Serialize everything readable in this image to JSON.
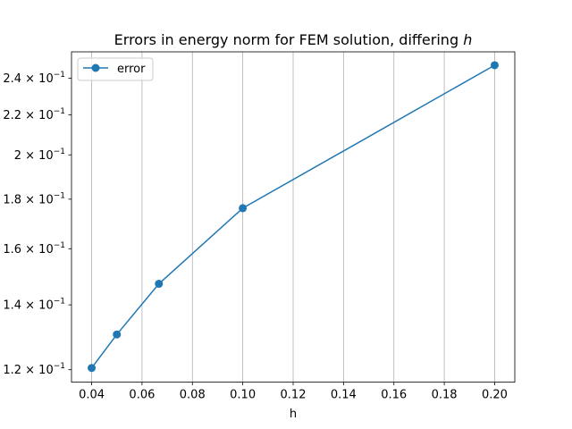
{
  "chart_data": {
    "type": "line",
    "title": "Errors in energy norm for FEM solution, differing",
    "title_var": "h",
    "xlabel": "h",
    "ylabel": "",
    "x_scale": "linear",
    "y_scale": "log",
    "xlim": [
      0.032,
      0.208
    ],
    "ylim": [
      0.1165,
      0.2555
    ],
    "x_ticks": [
      0.04,
      0.06,
      0.08,
      0.1,
      0.12,
      0.14,
      0.16,
      0.18,
      0.2
    ],
    "x_tick_labels": [
      "0.04",
      "0.06",
      "0.08",
      "0.10",
      "0.12",
      "0.14",
      "0.16",
      "0.18",
      "0.20"
    ],
    "y_ticks": [
      0.12,
      0.14,
      0.16,
      0.18,
      0.2,
      0.22,
      0.24
    ],
    "y_tick_labels": [
      {
        "mantissa": "1.2",
        "base": "10",
        "exponent": "−1"
      },
      {
        "mantissa": "1.4",
        "base": "10",
        "exponent": "−1"
      },
      {
        "mantissa": "1.6",
        "base": "10",
        "exponent": "−1"
      },
      {
        "mantissa": "1.8",
        "base": "10",
        "exponent": "−1"
      },
      {
        "mantissa": "2",
        "base": "10",
        "exponent": "−1"
      },
      {
        "mantissa": "2.2",
        "base": "10",
        "exponent": "−1"
      },
      {
        "mantissa": "2.4",
        "base": "10",
        "exponent": "−1"
      }
    ],
    "grid": "x-major vertical lines",
    "legend_position": "upper-left",
    "series": [
      {
        "name": "error",
        "color": "#1f77b4",
        "marker": "circle",
        "x": [
          0.04,
          0.05,
          0.0667,
          0.1,
          0.2
        ],
        "y": [
          0.1205,
          0.1305,
          0.1472,
          0.1762,
          0.2475
        ]
      }
    ]
  }
}
